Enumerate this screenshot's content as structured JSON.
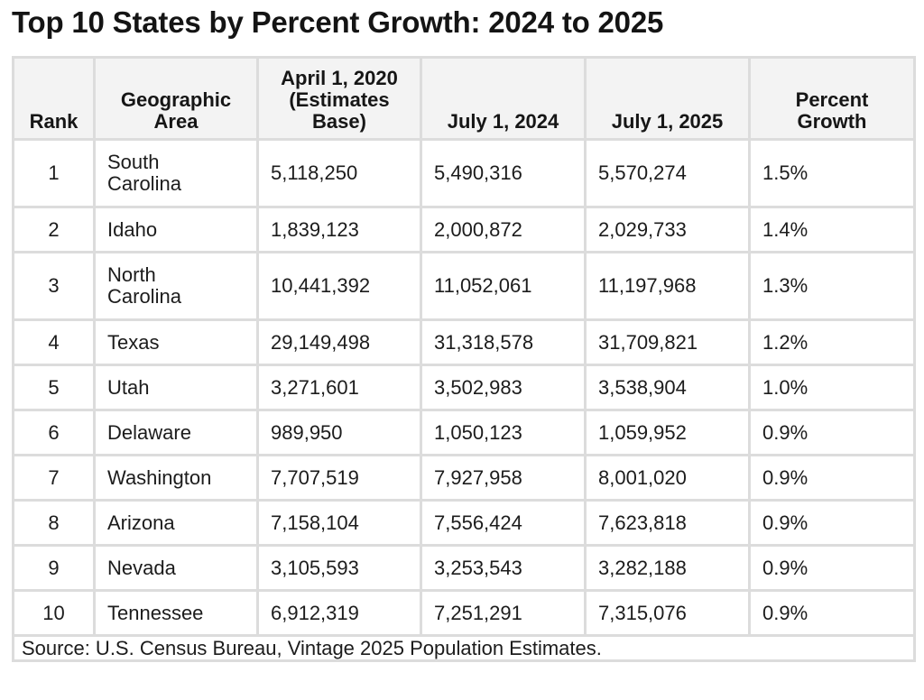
{
  "title": "Top 10 States by Percent Growth: 2024 to 2025",
  "table": {
    "headers": {
      "rank": "Rank",
      "area_line1": "Geographic",
      "area_line2": "Area",
      "base_line1": "April 1, 2020",
      "base_line2": "(Estimates",
      "base_line3": "Base)",
      "july2024": "July 1, 2024",
      "july2025": "July 1, 2025",
      "growth_line1": "Percent",
      "growth_line2": "Growth"
    },
    "rows": [
      {
        "rank": "1",
        "area_line1": "South",
        "area_line2": "Carolina",
        "base": "5,118,250",
        "july2024": "5,490,316",
        "july2025": "5,570,274",
        "growth": "1.5%"
      },
      {
        "rank": "2",
        "area_line1": "Idaho",
        "area_line2": "",
        "base": "1,839,123",
        "july2024": "2,000,872",
        "july2025": "2,029,733",
        "growth": "1.4%"
      },
      {
        "rank": "3",
        "area_line1": "North",
        "area_line2": "Carolina",
        "base": "10,441,392",
        "july2024": "11,052,061",
        "july2025": "11,197,968",
        "growth": "1.3%"
      },
      {
        "rank": "4",
        "area_line1": "Texas",
        "area_line2": "",
        "base": "29,149,498",
        "july2024": "31,318,578",
        "july2025": "31,709,821",
        "growth": "1.2%"
      },
      {
        "rank": "5",
        "area_line1": "Utah",
        "area_line2": "",
        "base": "3,271,601",
        "july2024": "3,502,983",
        "july2025": "3,538,904",
        "growth": "1.0%"
      },
      {
        "rank": "6",
        "area_line1": "Delaware",
        "area_line2": "",
        "base": "989,950",
        "july2024": "1,050,123",
        "july2025": "1,059,952",
        "growth": "0.9%"
      },
      {
        "rank": "7",
        "area_line1": "Washington",
        "area_line2": "",
        "base": "7,707,519",
        "july2024": "7,927,958",
        "july2025": "8,001,020",
        "growth": "0.9%"
      },
      {
        "rank": "8",
        "area_line1": "Arizona",
        "area_line2": "",
        "base": "7,158,104",
        "july2024": "7,556,424",
        "july2025": "7,623,818",
        "growth": "0.9%"
      },
      {
        "rank": "9",
        "area_line1": "Nevada",
        "area_line2": "",
        "base": "3,105,593",
        "july2024": "3,253,543",
        "july2025": "3,282,188",
        "growth": "0.9%"
      },
      {
        "rank": "10",
        "area_line1": "Tennessee",
        "area_line2": "",
        "base": "6,912,319",
        "july2024": "7,251,291",
        "july2025": "7,315,076",
        "growth": "0.9%"
      }
    ],
    "source": "Source: U.S. Census Bureau, Vintage 2025 Population Estimates."
  }
}
